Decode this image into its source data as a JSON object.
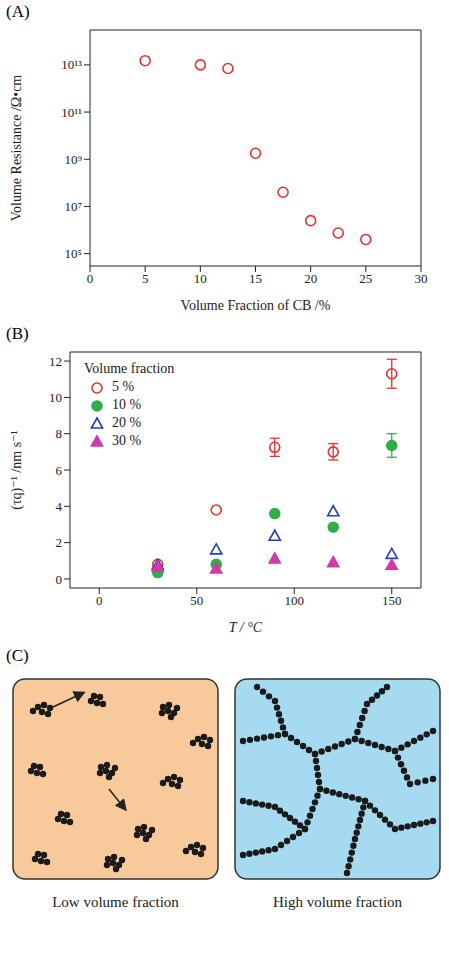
{
  "chart_data": [
    {
      "type": "scatter",
      "title": "(A)",
      "x_label": "Volume Fraction of CB /%",
      "y_label": "Volume Resistance /Ω•cm",
      "x": [
        5,
        10,
        12.5,
        15,
        17.5,
        20,
        22.5,
        25
      ],
      "values": [
        15000000000000.0,
        10000000000000.0,
        7000000000000.0,
        1800000000.0,
        40000000.0,
        2500000.0,
        750000.0,
        400000.0
      ],
      "color": "#e8302f",
      "marker": "open_circle",
      "log": "y",
      "xlim": [
        0,
        30
      ],
      "xticks": [
        0,
        5,
        10,
        15,
        20,
        25,
        30
      ],
      "ylim": [
        30000.0,
        300000000000000.0
      ],
      "yticks": [
        {
          "value": 100000.0,
          "label": "10⁵"
        },
        {
          "value": 10000000.0,
          "label": "10⁷"
        },
        {
          "value": 1000000000.0,
          "label": "10⁹"
        },
        {
          "value": 100000000000.0,
          "label": "10¹¹"
        },
        {
          "value": 10000000000000.0,
          "label": "10¹³"
        }
      ]
    },
    {
      "type": "scatter",
      "title": "(B)",
      "x_label": "T / °C",
      "y_label": "(τq)⁻¹ /nm s⁻¹",
      "legend_title": "Volume fraction",
      "legend": "upper left",
      "x": [
        30,
        60,
        90,
        120,
        150
      ],
      "series": [
        {
          "name": "5 %",
          "color": "#e8302f",
          "marker": "open_circle",
          "values": [
            0.8,
            3.8,
            7.25,
            7.0,
            11.3
          ],
          "errors": [
            0,
            0,
            0.5,
            0.45,
            0.8
          ]
        },
        {
          "name": "10 %",
          "color": "#2fae4a",
          "marker": "circle",
          "values": [
            0.35,
            0.8,
            3.6,
            2.85,
            7.35
          ],
          "errors": [
            0,
            0,
            0,
            0,
            0.65
          ]
        },
        {
          "name": "20 %",
          "color": "#2440b8",
          "marker": "open_triangle",
          "values": [
            0.75,
            1.6,
            2.35,
            3.7,
            1.35
          ],
          "errors": [
            0,
            0,
            0,
            0,
            0
          ]
        },
        {
          "name": "30 %",
          "color": "#cf3aa9",
          "marker": "triangle",
          "values": [
            0.65,
            0.55,
            1.1,
            0.9,
            0.75
          ],
          "errors": [
            0,
            0,
            0,
            0,
            0
          ]
        }
      ],
      "xlim": [
        -15,
        165
      ],
      "xticks": [
        0,
        50,
        100,
        150
      ],
      "ylim": [
        -0.5,
        12.5
      ],
      "yticks": [
        0,
        2,
        4,
        6,
        8,
        10,
        12
      ]
    }
  ],
  "diagram": {
    "title": "(C)",
    "panels": [
      {
        "label": "Low volume fraction",
        "color": "#f8c99b"
      },
      {
        "label": "High volume fraction",
        "color": "#a6daf0"
      }
    ]
  }
}
